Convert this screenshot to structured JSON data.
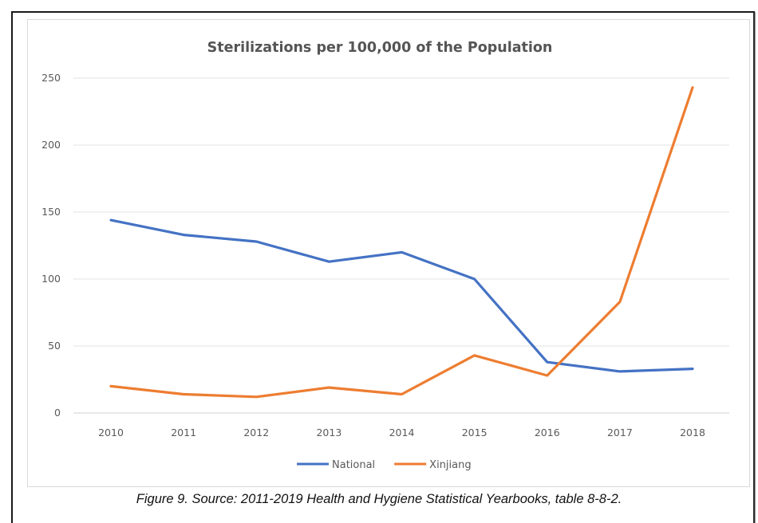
{
  "chart_data": {
    "type": "line",
    "title": "Sterilizations per 100,000 of the Population",
    "xlabel": "",
    "ylabel": "",
    "categories": [
      "2010",
      "2011",
      "2012",
      "2013",
      "2014",
      "2015",
      "2016",
      "2017",
      "2018"
    ],
    "series": [
      {
        "name": "National",
        "color": "#4472C4",
        "values": [
          144,
          133,
          128,
          113,
          120,
          100,
          38,
          31,
          33
        ]
      },
      {
        "name": "Xinjiang",
        "color": "#ED7D31",
        "values": [
          20,
          14,
          12,
          19,
          14,
          43,
          28,
          83,
          243
        ]
      }
    ],
    "ylim": [
      0,
      250
    ],
    "yticks": [
      "0",
      "50",
      "100",
      "150",
      "200",
      "250"
    ],
    "grid": true,
    "legend": "bottom"
  },
  "caption": "Figure 9. Source: 2011-2019 Health and Hygiene Statistical Yearbooks, table 8-8-2."
}
